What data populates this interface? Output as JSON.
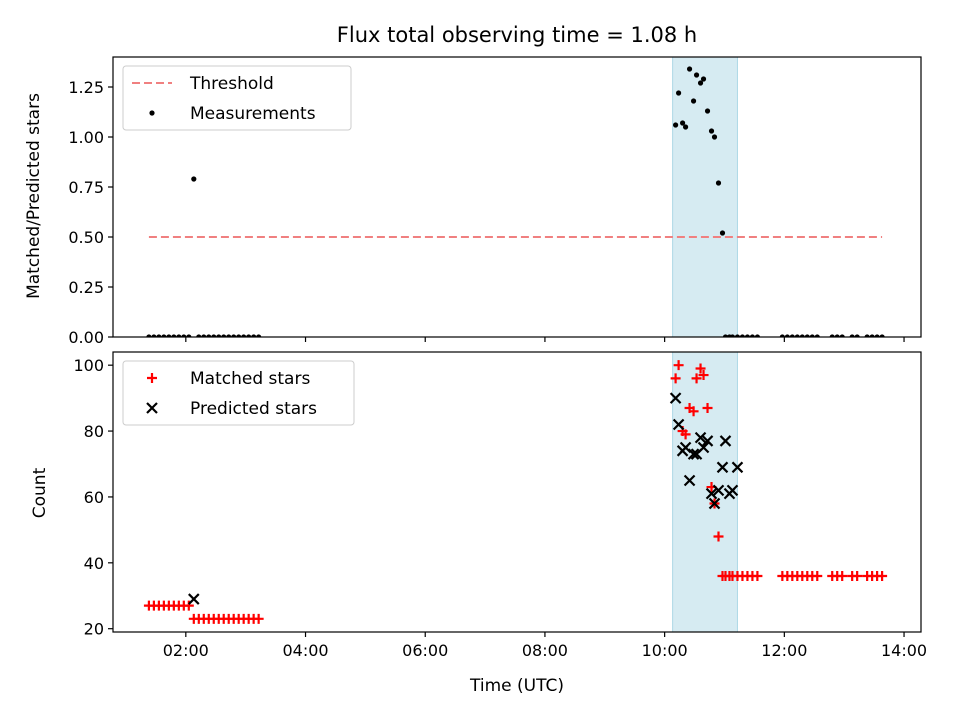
{
  "title": "Flux total observing time = 1.08 h",
  "chart_data": [
    {
      "type": "scatter",
      "ylabel": "Matched/Predicted stars",
      "xlim": [
        "00:47",
        "14:17"
      ],
      "ylim": [
        0,
        1.4
      ],
      "yticks": [
        0.0,
        0.25,
        0.5,
        0.75,
        1.0,
        1.25
      ],
      "ytick_labels": [
        "0.00",
        "0.25",
        "0.50",
        "0.75",
        "1.00",
        "1.25"
      ],
      "shaded_span": [
        "10:08",
        "11:13"
      ],
      "grid": false,
      "legend": {
        "placement": "top-left",
        "entries": [
          "Threshold",
          "Measurements"
        ]
      },
      "series": [
        {
          "name": "Threshold",
          "style": "dashed-line",
          "x": [
            "01:23",
            "13:38"
          ],
          "y": [
            0.5,
            0.5
          ]
        },
        {
          "name": "Measurements",
          "style": "dot",
          "x": [
            "01:23",
            "01:28",
            "01:33",
            "01:38",
            "01:43",
            "01:48",
            "01:53",
            "01:58",
            "02:03",
            "02:08",
            "02:13",
            "02:18",
            "02:23",
            "02:28",
            "02:33",
            "02:38",
            "02:43",
            "02:48",
            "02:53",
            "02:58",
            "03:03",
            "03:08",
            "03:13",
            "10:11",
            "10:14",
            "10:18",
            "10:21",
            "10:25",
            "10:29",
            "10:32",
            "10:36",
            "10:39",
            "10:43",
            "10:47",
            "10:50",
            "10:54",
            "10:58",
            "11:01",
            "11:05",
            "11:08",
            "11:13",
            "11:18",
            "11:23",
            "11:28",
            "11:33",
            "11:58",
            "12:03",
            "12:08",
            "12:13",
            "12:18",
            "12:23",
            "12:28",
            "12:33",
            "12:48",
            "12:53",
            "12:58",
            "13:08",
            "13:13",
            "13:23",
            "13:28",
            "13:33",
            "13:38"
          ],
          "y": [
            0,
            0,
            0,
            0,
            0,
            0,
            0,
            0,
            0,
            0.79,
            0,
            0,
            0,
            0,
            0,
            0,
            0,
            0,
            0,
            0,
            0,
            0,
            0,
            1.06,
            1.22,
            1.07,
            1.05,
            1.34,
            1.18,
            1.31,
            1.27,
            1.29,
            1.13,
            1.03,
            1.0,
            0.77,
            0.52,
            0,
            0,
            0,
            0,
            0,
            0,
            0,
            0,
            0,
            0,
            0,
            0,
            0,
            0,
            0,
            0,
            0,
            0,
            0,
            0,
            0,
            0,
            0,
            0,
            0
          ]
        }
      ]
    },
    {
      "type": "scatter",
      "xlabel": "Time (UTC)",
      "ylabel": "Count",
      "xlim": [
        "00:47",
        "14:17"
      ],
      "xticks": [
        "02:00",
        "04:00",
        "06:00",
        "08:00",
        "10:00",
        "12:00",
        "14:00"
      ],
      "ylim": [
        19,
        104
      ],
      "yticks": [
        20,
        40,
        60,
        80,
        100
      ],
      "shaded_span": [
        "10:08",
        "11:13"
      ],
      "grid": false,
      "legend": {
        "placement": "top-left",
        "entries": [
          "Matched stars",
          "Predicted stars"
        ]
      },
      "series": [
        {
          "name": "Matched stars",
          "marker": "plus",
          "color": "#ff0000",
          "x": [
            "01:23",
            "01:28",
            "01:33",
            "01:38",
            "01:43",
            "01:48",
            "01:53",
            "01:58",
            "02:03",
            "02:08",
            "02:13",
            "02:18",
            "02:23",
            "02:28",
            "02:33",
            "02:38",
            "02:43",
            "02:48",
            "02:53",
            "02:58",
            "03:03",
            "03:08",
            "03:13",
            "10:11",
            "10:14",
            "10:18",
            "10:21",
            "10:25",
            "10:29",
            "10:32",
            "10:36",
            "10:39",
            "10:43",
            "10:47",
            "10:50",
            "10:54",
            "10:58",
            "11:01",
            "11:05",
            "11:08",
            "11:13",
            "11:18",
            "11:23",
            "11:28",
            "11:33",
            "11:58",
            "12:03",
            "12:08",
            "12:13",
            "12:18",
            "12:23",
            "12:28",
            "12:33",
            "12:48",
            "12:53",
            "12:58",
            "13:08",
            "13:13",
            "13:23",
            "13:28",
            "13:33",
            "13:38"
          ],
          "y": [
            27,
            27,
            27,
            27,
            27,
            27,
            27,
            27,
            27,
            23,
            23,
            23,
            23,
            23,
            23,
            23,
            23,
            23,
            23,
            23,
            23,
            23,
            23,
            96,
            100,
            80,
            79,
            87,
            86,
            96,
            99,
            97,
            87,
            63,
            58,
            48,
            36,
            36,
            36,
            36,
            36,
            36,
            36,
            36,
            36,
            36,
            36,
            36,
            36,
            36,
            36,
            36,
            36,
            36,
            36,
            36,
            36,
            36,
            36,
            36,
            36,
            36
          ]
        },
        {
          "name": "Predicted stars",
          "marker": "x",
          "color": "#000000",
          "x": [
            "02:08",
            "10:11",
            "10:14",
            "10:18",
            "10:21",
            "10:25",
            "10:29",
            "10:32",
            "10:36",
            "10:39",
            "10:43",
            "10:47",
            "10:50",
            "10:54",
            "10:58",
            "11:01",
            "11:05",
            "11:08",
            "11:13"
          ],
          "y": [
            29,
            90,
            82,
            74,
            75,
            65,
            73,
            73,
            78,
            75,
            77,
            61,
            58,
            62,
            69,
            77,
            61,
            62,
            69
          ]
        }
      ]
    }
  ]
}
